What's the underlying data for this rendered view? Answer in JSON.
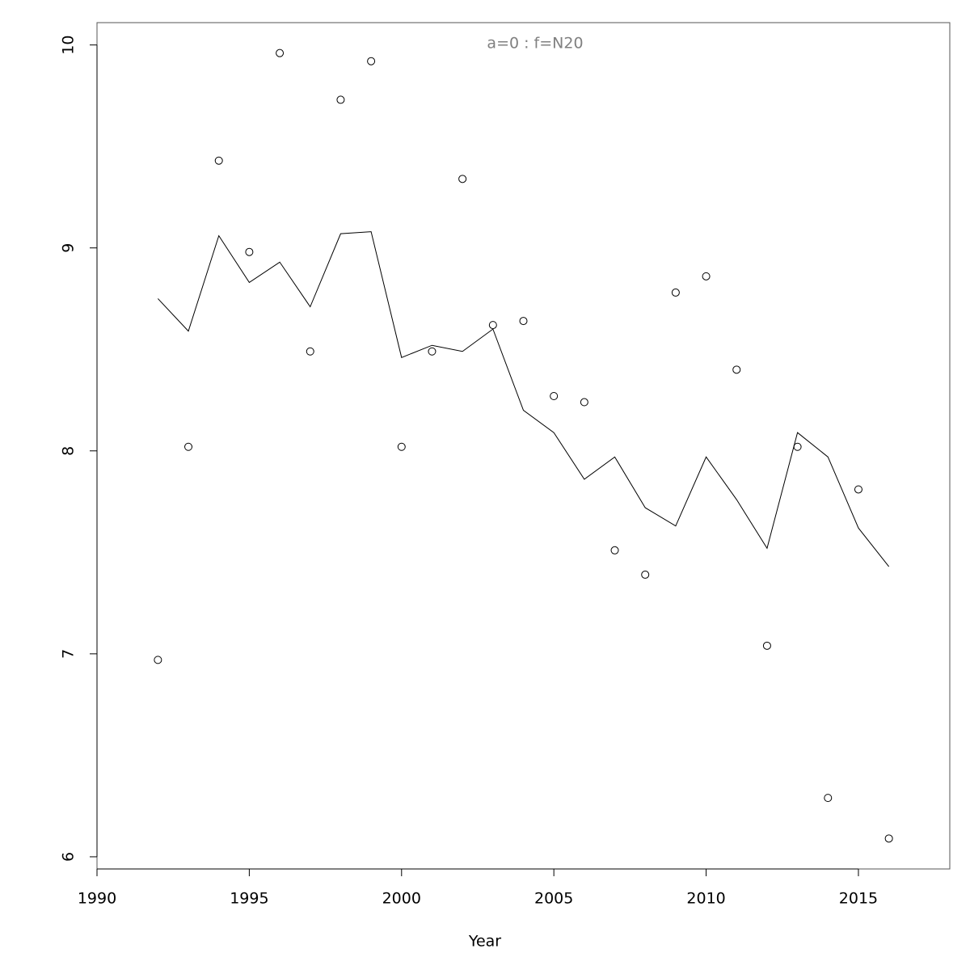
{
  "chart_data": {
    "type": "line",
    "title": "a=0  :  f=N20",
    "xlabel": "Year",
    "x": [
      1992,
      1993,
      1994,
      1995,
      1996,
      1997,
      1998,
      1999,
      2000,
      2001,
      2002,
      2003,
      2004,
      2005,
      2006,
      2007,
      2008,
      2009,
      2010,
      2011,
      2012,
      2013,
      2014,
      2015,
      2016
    ],
    "series": [
      {
        "type": "scatter",
        "color": "#000000",
        "values": [
          6.97,
          8.02,
          9.43,
          8.98,
          9.96,
          8.49,
          9.73,
          9.92,
          8.02,
          8.49,
          9.34,
          8.62,
          8.64,
          8.27,
          8.24,
          7.51,
          7.39,
          8.78,
          8.86,
          8.4,
          7.04,
          8.02,
          6.29,
          7.81,
          6.09
        ]
      },
      {
        "type": "line",
        "color": "#000000",
        "values": [
          8.75,
          8.59,
          9.06,
          8.83,
          8.93,
          8.71,
          9.07,
          9.08,
          8.46,
          8.52,
          8.49,
          8.6,
          8.2,
          8.09,
          7.86,
          7.97,
          7.72,
          7.63,
          7.97,
          7.76,
          7.52,
          8.09,
          7.97,
          7.62,
          7.43
        ]
      }
    ],
    "xlim": [
      1990,
      2018
    ],
    "xticks": [
      1990,
      1995,
      2000,
      2005,
      2010,
      2015
    ],
    "ylim": [
      5.94,
      10.11
    ],
    "yticks": [
      6,
      7,
      8,
      9,
      10
    ],
    "grid": false
  }
}
